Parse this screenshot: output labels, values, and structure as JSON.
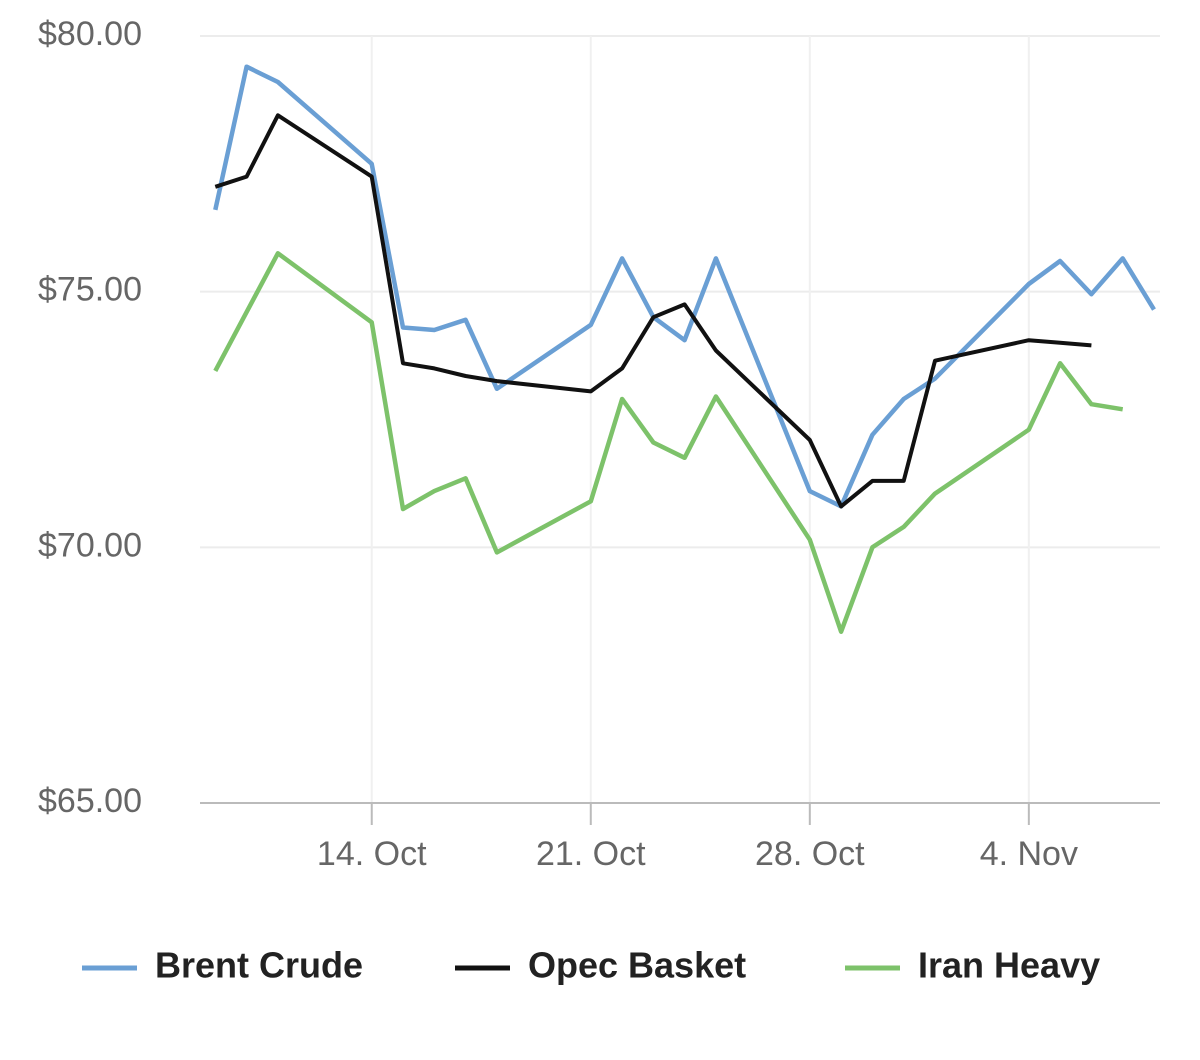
{
  "chart_data": {
    "type": "line",
    "x": [
      "10-09",
      "10-10",
      "10-11",
      "10-14",
      "10-15",
      "10-16",
      "10-17",
      "10-18",
      "10-21",
      "10-22",
      "10-23",
      "10-24",
      "10-25",
      "10-28",
      "10-29",
      "10-30",
      "10-31",
      "11-01",
      "11-04",
      "11-05",
      "11-06",
      "11-07",
      "11-08"
    ],
    "series": [
      {
        "name": "Brent Crude",
        "color": "#6a9fd4",
        "values": [
          76.6,
          79.4,
          79.1,
          77.5,
          74.3,
          74.25,
          74.45,
          73.1,
          74.35,
          75.65,
          74.5,
          74.05,
          75.65,
          71.1,
          70.8,
          72.2,
          72.9,
          73.3,
          75.15,
          75.6,
          74.95,
          75.65,
          74.65
        ]
      },
      {
        "name": "Opec Basket",
        "color": "#111111",
        "values": [
          77.05,
          77.25,
          78.45,
          77.25,
          73.6,
          73.5,
          73.35,
          73.25,
          73.05,
          73.5,
          74.5,
          74.75,
          73.85,
          72.1,
          70.8,
          71.3,
          71.3,
          73.65,
          74.05,
          74.0,
          73.95,
          null,
          null
        ]
      },
      {
        "name": "Iran Heavy",
        "color": "#7dc26a",
        "values": [
          73.45,
          74.6,
          75.75,
          74.4,
          70.75,
          71.1,
          71.35,
          69.9,
          70.9,
          72.9,
          72.05,
          71.75,
          72.95,
          70.15,
          68.35,
          70.0,
          70.4,
          71.05,
          72.3,
          73.6,
          72.8,
          72.7,
          null
        ]
      }
    ],
    "xlim": [
      "10-08",
      "11-08"
    ],
    "xticks": [
      {
        "value": "10-14",
        "label": "14. Oct"
      },
      {
        "value": "10-21",
        "label": "21. Oct"
      },
      {
        "value": "10-28",
        "label": "28. Oct"
      },
      {
        "value": "11-04",
        "label": "4. Nov"
      }
    ],
    "ylim": [
      65,
      80
    ],
    "yticks": [
      {
        "value": 65,
        "label": "$65.00"
      },
      {
        "value": 70,
        "label": "$70.00"
      },
      {
        "value": 75,
        "label": "$75.00"
      },
      {
        "value": 80,
        "label": "$80.00"
      }
    ],
    "grid": true,
    "legend": "bottom"
  }
}
